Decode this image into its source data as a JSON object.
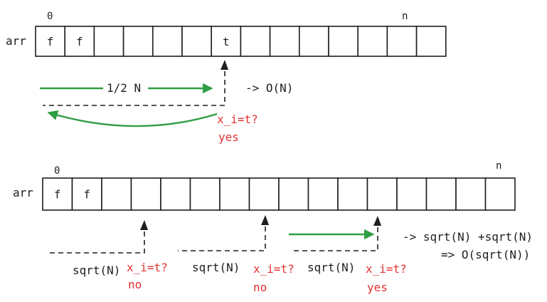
{
  "top_diagram": {
    "array_label": "arr",
    "index_start": "0",
    "index_end": "n",
    "cells": [
      "f",
      "f",
      "",
      "",
      "",
      "",
      "t",
      "",
      "",
      "",
      "",
      "",
      "",
      ""
    ],
    "walk_label": "1/2 N",
    "complexity": "-> O(N)",
    "check_label": "x_i=t?",
    "check_result": "yes"
  },
  "bottom_diagram": {
    "array_label": "arr",
    "index_start": "0",
    "index_end": "n",
    "cells": [
      "f",
      "f",
      "",
      "",
      "",
      "",
      "",
      "",
      "",
      "",
      "",
      "",
      "",
      "",
      "",
      ""
    ],
    "jumps": [
      {
        "step_label": "sqrt(N)",
        "check_label": "x_i=t?",
        "result": "no"
      },
      {
        "step_label": "sqrt(N)",
        "check_label": "x_i=t?",
        "result": "no"
      },
      {
        "step_label": "sqrt(N)",
        "check_label": "x_i=t?",
        "result": "yes"
      }
    ],
    "complexity_line1": "-> sqrt(N) +sqrt(N)",
    "complexity_line2": "=> O(sqrt(N))"
  }
}
